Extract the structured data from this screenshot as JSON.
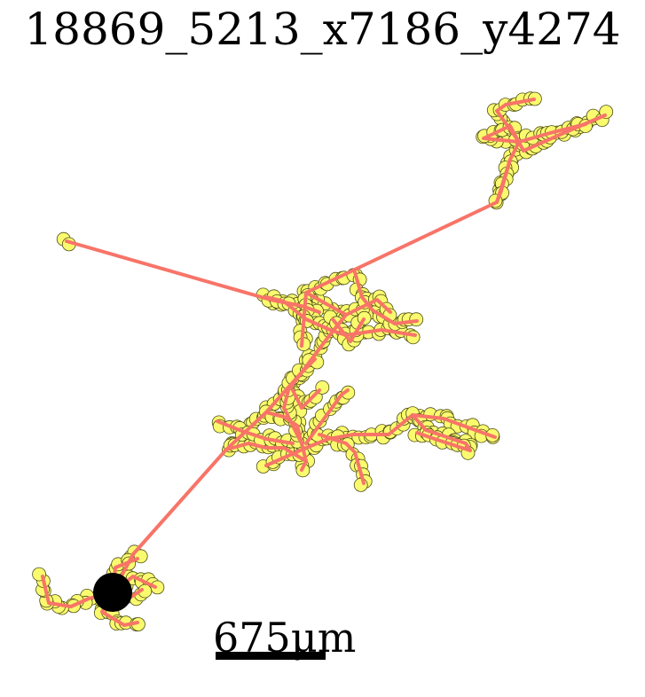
{
  "title": "18869_5213_x7186_y4274",
  "scale_bar": {
    "label": "675μm"
  },
  "colors": {
    "edge": "#f87468",
    "node_fill": "#fafa6e",
    "node_stroke": "#4d4d1a",
    "soma": "#000000",
    "background": "#ffffff"
  }
}
